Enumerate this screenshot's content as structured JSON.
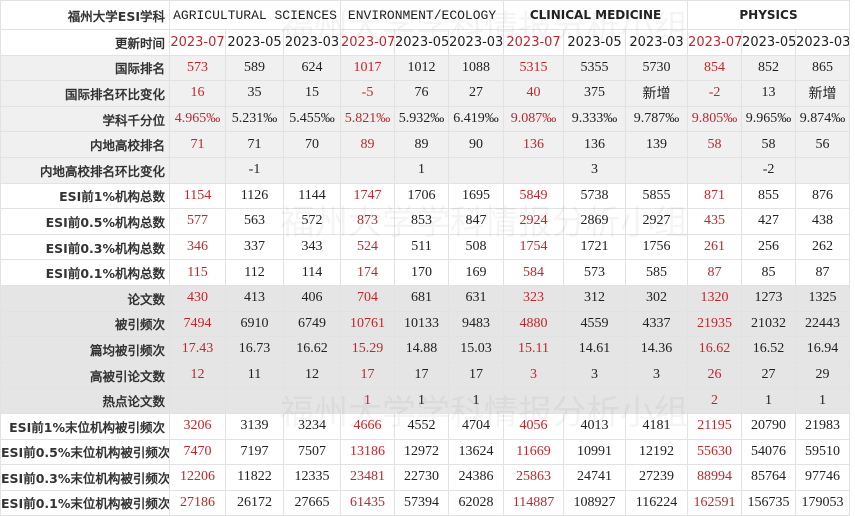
{
  "corner_label": "福州大学ESI学科",
  "date_row_label": "更新时间",
  "subjects": [
    {
      "name": "AGRICULTURAL SCIENCES",
      "mono": true
    },
    {
      "name": "ENVIRONMENT/ECOLOGY",
      "mono": true
    },
    {
      "name": "CLINICAL MEDICINE",
      "mono": false
    },
    {
      "name": "PHYSICS",
      "mono": false
    }
  ],
  "dates": [
    "2023-07",
    "2023-05",
    "2023-03",
    "2023-07",
    "2023-05",
    "2023-03",
    "2023-07",
    "2023-05",
    "2023-03",
    "2023-07",
    "2023-05",
    "2023-03"
  ],
  "highlight_color": "#c0272d",
  "watermark": "福州大学学科情报分析小组",
  "rows": [
    {
      "label": "国际排名",
      "shade": 1,
      "values": [
        "573",
        "589",
        "624",
        "1017",
        "1012",
        "1088",
        "5315",
        "5355",
        "5730",
        "854",
        "852",
        "865"
      ]
    },
    {
      "label": "国际排名环比变化",
      "shade": 1,
      "values": [
        "16",
        "35",
        "15",
        "-5",
        "76",
        "27",
        "40",
        "375",
        "新增",
        "-2",
        "13",
        "新增"
      ]
    },
    {
      "label": "学科千分位",
      "shade": 1,
      "values": [
        "4.965‰",
        "5.231‰",
        "5.455‰",
        "5.821‰",
        "5.932‰",
        "6.419‰",
        "9.087‰",
        "9.333‰",
        "9.787‰",
        "9.805‰",
        "9.965‰",
        "9.874‰"
      ]
    },
    {
      "label": "内地高校排名",
      "shade": 1,
      "values": [
        "71",
        "71",
        "70",
        "89",
        "89",
        "90",
        "136",
        "136",
        "139",
        "58",
        "58",
        "56"
      ]
    },
    {
      "label": "内地高校排名环比变化",
      "shade": 1,
      "values": [
        "",
        "-1",
        "",
        "",
        "1",
        "",
        "",
        "3",
        "",
        "",
        "-2",
        ""
      ]
    },
    {
      "label": "ESI前1%机构总数",
      "shade": 0,
      "values": [
        "1154",
        "1126",
        "1144",
        "1747",
        "1706",
        "1695",
        "5849",
        "5738",
        "5855",
        "871",
        "855",
        "876"
      ]
    },
    {
      "label": "ESI前0.5%机构总数",
      "shade": 0,
      "values": [
        "577",
        "563",
        "572",
        "873",
        "853",
        "847",
        "2924",
        "2869",
        "2927",
        "435",
        "427",
        "438"
      ]
    },
    {
      "label": "ESI前0.3%机构总数",
      "shade": 0,
      "values": [
        "346",
        "337",
        "343",
        "524",
        "511",
        "508",
        "1754",
        "1721",
        "1756",
        "261",
        "256",
        "262"
      ]
    },
    {
      "label": "ESI前0.1%机构总数",
      "shade": 0,
      "values": [
        "115",
        "112",
        "114",
        "174",
        "170",
        "169",
        "584",
        "573",
        "585",
        "87",
        "85",
        "87"
      ]
    },
    {
      "label": "论文数",
      "shade": 2,
      "values": [
        "430",
        "413",
        "406",
        "704",
        "681",
        "631",
        "323",
        "312",
        "302",
        "1320",
        "1273",
        "1325"
      ]
    },
    {
      "label": "被引频次",
      "shade": 2,
      "values": [
        "7494",
        "6910",
        "6749",
        "10761",
        "10133",
        "9483",
        "4880",
        "4559",
        "4337",
        "21935",
        "21032",
        "22443"
      ]
    },
    {
      "label": "篇均被引频次",
      "shade": 2,
      "values": [
        "17.43",
        "16.73",
        "16.62",
        "15.29",
        "14.88",
        "15.03",
        "15.11",
        "14.61",
        "14.36",
        "16.62",
        "16.52",
        "16.94"
      ]
    },
    {
      "label": "高被引论文数",
      "shade": 2,
      "values": [
        "12",
        "11",
        "12",
        "17",
        "17",
        "17",
        "3",
        "3",
        "3",
        "26",
        "27",
        "29"
      ]
    },
    {
      "label": "热点论文数",
      "shade": 2,
      "values": [
        "",
        "",
        "",
        "1",
        "1",
        "1",
        "",
        "",
        "",
        "2",
        "1",
        "1"
      ]
    },
    {
      "label": "ESI前1%末位机构被引频次",
      "shade": 0,
      "values": [
        "3206",
        "3139",
        "3234",
        "4666",
        "4552",
        "4704",
        "4056",
        "4013",
        "4181",
        "21195",
        "20790",
        "21983"
      ]
    },
    {
      "label": "ESI前0.5%末位机构被引频次",
      "shade": 0,
      "values": [
        "7470",
        "7197",
        "7507",
        "13186",
        "12972",
        "13624",
        "11669",
        "10991",
        "12192",
        "55630",
        "54076",
        "59510"
      ]
    },
    {
      "label": "ESI前0.3%末位机构被引频次",
      "shade": 0,
      "values": [
        "12206",
        "11822",
        "12335",
        "23481",
        "22730",
        "24386",
        "25863",
        "24741",
        "27239",
        "88994",
        "85764",
        "97746"
      ]
    },
    {
      "label": "ESI前0.1%末位机构被引频次",
      "shade": 0,
      "values": [
        "27186",
        "26172",
        "27665",
        "61435",
        "57394",
        "62028",
        "114887",
        "108927",
        "116224",
        "162591",
        "156735",
        "179053"
      ]
    }
  ]
}
